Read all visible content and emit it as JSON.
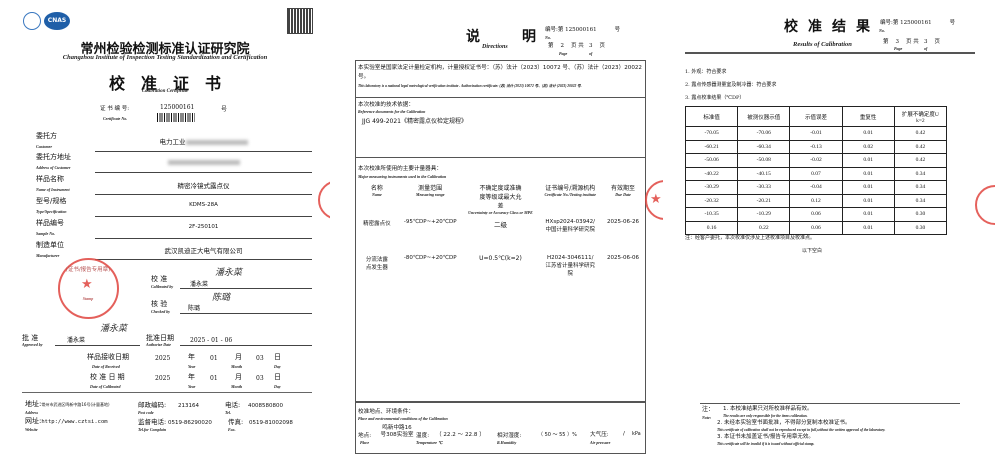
{
  "left_page": {
    "logos": [
      "ilac-mra-logo",
      "CNAS"
    ],
    "org_cn": "常州检验检测标准认证研究院",
    "org_en": "Changzhou Institute of Inspection Testing Standardization and Certification",
    "title_cn": "校　准　证　书",
    "title_en": "Calibration Certificate",
    "cert_no_label": "证 书 编 号:",
    "cert_no_label_en": "Certificate No.",
    "cert_no": "125000161",
    "cert_no_suffix": "号",
    "fields": [
      {
        "label": "委托方",
        "label_en": "Customer",
        "value": "电力工业"
      },
      {
        "label": "委托方地址",
        "label_en": "Address of Customer",
        "value": ""
      },
      {
        "label": "样品名称",
        "label_en": "Name of Instrument",
        "value": "精密冷镜式露点仪"
      },
      {
        "label": "型号/规格",
        "label_en": "Type/Specification",
        "value": "KDMS-28A"
      },
      {
        "label": "样品编号",
        "label_en": "Sample No.",
        "value": "2F-250101"
      },
      {
        "label": "制造单位",
        "label_en": "Manufacturer",
        "value": "武汉凯迪正大电气有限公司"
      }
    ],
    "stamp_text": "(证书/报告专用章)",
    "stamp_en": "Stamp",
    "calibrated_label": "校 准",
    "calibrated_label_en": "Calibrated by",
    "calibrated_by": "潘永菜",
    "checked_label": "核 验",
    "checked_label_en": "Checked by",
    "checked_by": "陈璐",
    "approved_label": "批 准",
    "approved_label_en": "Approved by",
    "approved_by": "潘永菜",
    "auth_date_label": "批准日期",
    "auth_date_label_en": "Authorize Date",
    "auth_date": "2025 - 01 - 06",
    "received_label": "样品接收日期",
    "received_label_en": "Date of Received",
    "calibrated_date_label": "校 准 日 期",
    "calibrated_date_label_en": "Date of Calibrated",
    "year_label": "年",
    "year_en": "Year",
    "month_label": "月",
    "month_en": "Month",
    "day_label": "日",
    "day_en": "Day",
    "received": {
      "year": "2025",
      "month": "01",
      "day": "03"
    },
    "calibrated": {
      "year": "2025",
      "month": "01",
      "day": "03"
    },
    "footer": {
      "address_label": "地址:",
      "address_en": "Address",
      "address": "常州市武进区鸣新中路16号(计量基地)",
      "postcode_label": "邮政编码:",
      "postcode_en": "Post code",
      "postcode": "213164",
      "tel_label": "电话:",
      "tel_en": "Tel.",
      "tel": "4008580800",
      "web_label": "网址:",
      "web_en": "Website",
      "web": "http://www.czts​i.com",
      "complain_label": "监督电话:",
      "complain_en": "Tel.for Complain",
      "complain": "0519-86290020",
      "fax_label": "传真:",
      "fax_en": "Fax.",
      "fax": "0519-81002098"
    }
  },
  "middle_page": {
    "title_cn": "说　　　明",
    "title_en": "Directions",
    "no_label": "编号:第",
    "no": "125000161",
    "no_suffix": "号",
    "no_en": "No.",
    "page_label": "第",
    "page": "2",
    "page_mid": "页 共",
    "total": "3",
    "page_end": "页",
    "page_en": "Page",
    "of_en": "of",
    "s1_cn": "本实验室是国家法定计量检定机构，计量授权证书号：（苏）法计（2023）10072 号、（苏）法计（2023）20022 号。",
    "s1_en": "This laboratory is a national legal metrological verification institute . Authorization certificate: (苏) 法计 (2023) 10072 号、(苏) 法计 (2023) 20022 号.",
    "s2_cn": "本次校准的技术依据：",
    "s2_en": "Reference documents for the Calibration",
    "s2_value": "JJG 499-2021《精密露点仪检定规程》",
    "s3_cn": "本次校准所使用的主要计量器具：",
    "s3_en": "Major measuring instruments used in the Calibration",
    "instr_headers": [
      {
        "cn": "名称",
        "en": "Name"
      },
      {
        "cn": "测量范围",
        "en": "Measuring range"
      },
      {
        "cn": "不确定度或准确度等级或最大允差",
        "en": "Uncertainty or Accuracy Class or MPE"
      },
      {
        "cn": "证书编号/溯源机构",
        "en": "Certificate No./Testing institute"
      },
      {
        "cn": "有效期至",
        "en": "Due Date"
      }
    ],
    "instr_rows": [
      [
        "精密露点仪",
        "-95℃DP~+20℃DP",
        "二级",
        "HXsp2024-03942/中国计量科学研究院",
        "2025-06-26"
      ],
      [
        "分流法露点发生器",
        "-80℃DP~+20℃DP",
        "U=0.5℃(k=2)",
        "H2024-3046111/江苏省计量科学研究院",
        "2025-06-06"
      ]
    ],
    "s4_cn": "校准地点、环境条件：",
    "s4_en": "Place and environmental conditions of the Calibration",
    "place_label": "地点:",
    "place_en": "Place",
    "place": "鸣新中路16号308实验室",
    "temp_label": "温度:",
    "temp_en": "Temperature ℃",
    "temp": "（ 22.2 ～ 22.8 ）",
    "rh_label": "相对湿度:",
    "rh_en": "R.Humidity",
    "rh": "（ 50 ～ 55 ）%",
    "pressure_label": "大气压:",
    "pressure_en": "Air pressure",
    "pressure": "/",
    "pressure_unit": "kPa"
  },
  "right_page": {
    "title_cn": "校　准　结　果",
    "title_en": "Results of Calibration",
    "no_label": "编号:第",
    "no": "125000161",
    "no_suffix": "号",
    "no_en": "No.",
    "page_label": "第",
    "page": "3",
    "page_mid": "页 共",
    "total": "3",
    "page_end": "页",
    "page_en": "Page",
    "of_en": "of",
    "items": [
      "1. 外观：符合要求",
      "2. 露点传感器测量室及制冷器：符合要求",
      "3. 露点校准结果（℃DP）"
    ],
    "table_headers": [
      "标准值",
      "被测仪器示值",
      "示值误差",
      "重复性",
      "扩展不确定度U k=2"
    ],
    "table_rows": [
      [
        "-70.05",
        "-70.06",
        "-0.01",
        "0.01",
        "0.42"
      ],
      [
        "-60.21",
        "-60.34",
        "-0.13",
        "0.02",
        "0.42"
      ],
      [
        "-50.06",
        "-50.08",
        "-0.02",
        "0.01",
        "0.42"
      ],
      [
        "-40.22",
        "-40.15",
        "0.07",
        "0.01",
        "0.34"
      ],
      [
        "-30.29",
        "-30.33",
        "-0.04",
        "0.01",
        "0.34"
      ],
      [
        "-20.32",
        "-20.21",
        "0.12",
        "0.01",
        "0.34"
      ],
      [
        "-10.35",
        "-10.29",
        "0.06",
        "0.01",
        "0.30"
      ],
      [
        "0.16",
        "0.22",
        "0.06",
        "0.01",
        "0.30"
      ]
    ],
    "table_note": "注：经客户委托，本次校准仅涉及上述校准项目及校准点。",
    "blank": "以下空白",
    "notes_label": "注：",
    "notes_en_label": "Note:",
    "notes": [
      {
        "cn": "1. 本校准结果只对所校准样品有效。",
        "en": "The results are only responsible for the items calibration."
      },
      {
        "cn": "2. 未经本实验室书面批准，不得部分复制本校准证书。",
        "en": "This certificate of calibration shall not be reproduced except in full,without the written approval of the laboratory."
      },
      {
        "cn": "3. 本证书未加盖证书/报告专用章无效。",
        "en": "This certificate will be invalid if it is issued without official stamp."
      }
    ]
  },
  "colors": {
    "stamp": "#e0453f",
    "text": "#111111",
    "cnas_blue": "#1f5fa8"
  }
}
